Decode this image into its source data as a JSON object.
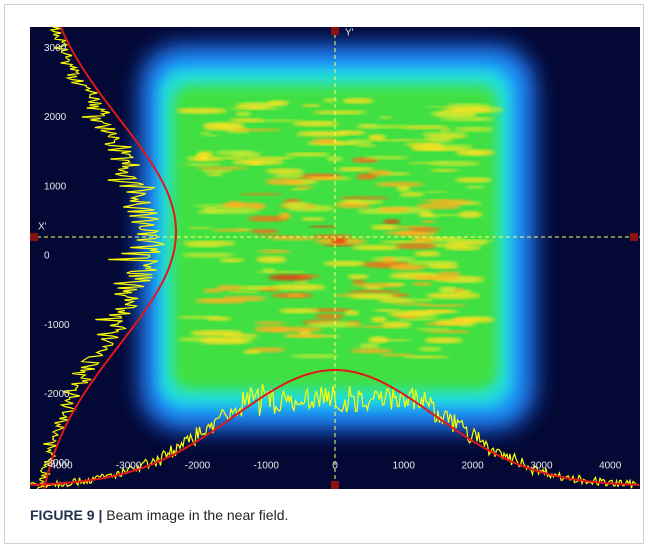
{
  "figure": {
    "image": {
      "x_axis_label": "X'",
      "y_axis_label": "Y'",
      "x_ticks": [
        -4000,
        -3000,
        -2000,
        -1000,
        0,
        1000,
        2000,
        3000,
        4000
      ],
      "y_ticks": [
        3000,
        2000,
        1000,
        0,
        -1000,
        -2000,
        -3000
      ]
    },
    "caption": {
      "label": "FIGURE 9 |",
      "text": "Beam image in the near field."
    }
  }
}
